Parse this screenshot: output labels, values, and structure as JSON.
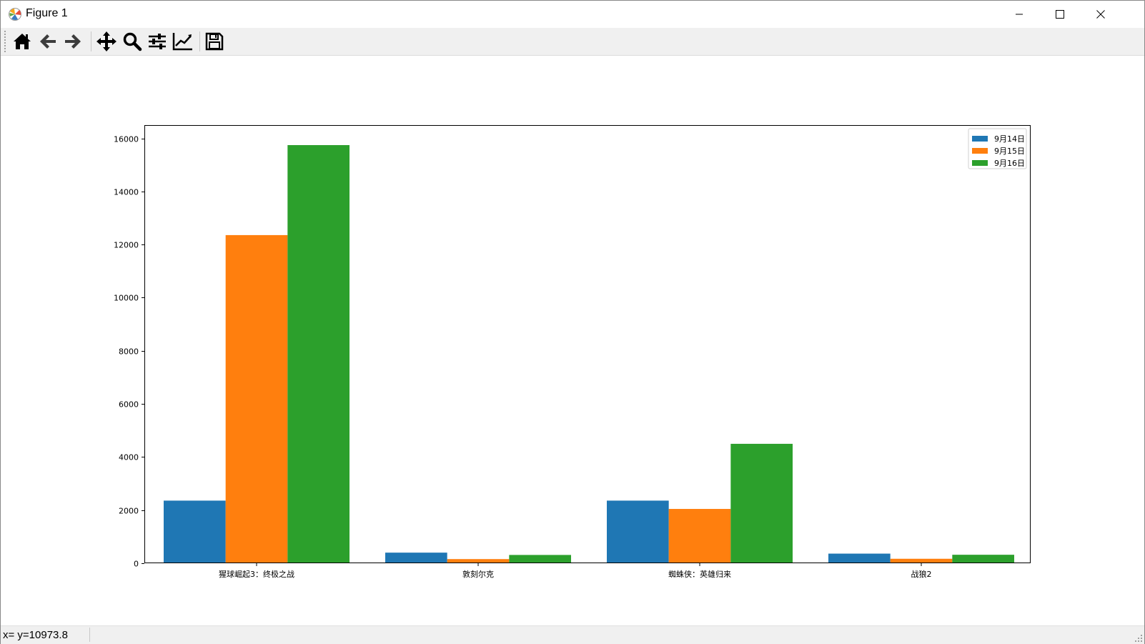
{
  "window": {
    "title": "Figure 1"
  },
  "toolbar": {
    "buttons": [
      {
        "name": "home-button",
        "icon": "home-icon"
      },
      {
        "name": "back-button",
        "icon": "arrow-left-icon"
      },
      {
        "name": "forward-button",
        "icon": "arrow-right-icon"
      },
      {
        "name": "pan-button",
        "icon": "move-icon"
      },
      {
        "name": "zoom-button",
        "icon": "magnifier-icon"
      },
      {
        "name": "subplots-button",
        "icon": "sliders-icon"
      },
      {
        "name": "edit-axes-button",
        "icon": "line-chart-icon"
      },
      {
        "name": "save-button",
        "icon": "floppy-disk-icon"
      }
    ]
  },
  "status": {
    "text": "x= y=10973.8"
  },
  "chart_data": {
    "type": "bar",
    "categories": [
      "猩球崛起3：终极之战",
      "敦刻尔克",
      "蜘蛛侠：英雄归来",
      "战狼2"
    ],
    "series": [
      {
        "name": "9月14日",
        "color": "#1f77b4",
        "values": [
          2358,
          399,
          2358,
          362
        ]
      },
      {
        "name": "9月15日",
        "color": "#ff7f0e",
        "values": [
          12357,
          156,
          2045,
          168
        ]
      },
      {
        "name": "9月16日",
        "color": "#2ca02c",
        "values": [
          15746,
          312,
          4497,
          319
        ]
      }
    ],
    "ylim": [
      0,
      16500
    ],
    "yticks": [
      0,
      2000,
      4000,
      6000,
      8000,
      10000,
      12000,
      14000,
      16000
    ],
    "legend": "top-right",
    "grid": false
  }
}
